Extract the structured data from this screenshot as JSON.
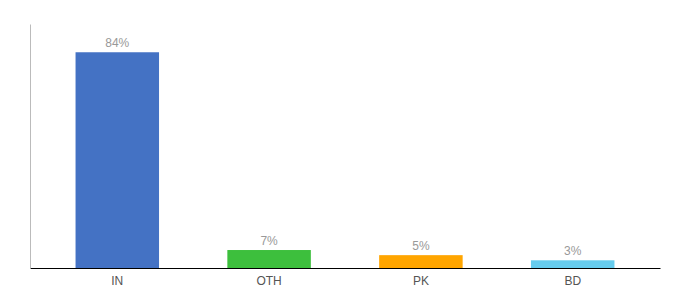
{
  "chart_data": {
    "type": "bar",
    "categories": [
      "IN",
      "OTH",
      "PK",
      "BD"
    ],
    "values": [
      84,
      7,
      5,
      3
    ],
    "value_labels": [
      "84%",
      "7%",
      "5%",
      "3%"
    ],
    "colors": [
      "#4472C4",
      "#3DBF3D",
      "#FFA500",
      "#66CCEE"
    ],
    "ylim": [
      0,
      95
    ],
    "data_labels": true,
    "tick_labels": "x"
  }
}
